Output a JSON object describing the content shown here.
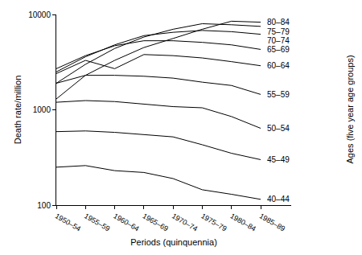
{
  "chart_data": {
    "type": "line",
    "xlabel": "Periods (quinquennia)",
    "ylabel": "Death rate/million",
    "annotations": [
      "Ages (five year age groups)"
    ],
    "log": "y",
    "ylim": [
      100,
      10000
    ],
    "yticks": [
      100,
      1000,
      10000
    ],
    "x": [
      "1950–54",
      "1955–59",
      "1960–64",
      "1965–69",
      "1970–74",
      "1975–79",
      "1980–84",
      "1985–89"
    ],
    "series": [
      {
        "name": "80–84",
        "color": "#000000",
        "values": [
          1300,
          2300,
          3300,
          4500,
          5600,
          7000,
          8500,
          8300
        ]
      },
      {
        "name": "75–79",
        "color": "#000000",
        "values": [
          1900,
          3000,
          4400,
          5800,
          7000,
          8000,
          7800,
          7500
        ]
      },
      {
        "name": "70–74",
        "color": "#000000",
        "values": [
          2500,
          3600,
          4800,
          6000,
          6500,
          6800,
          6600,
          6200
        ]
      },
      {
        "name": "65–69",
        "color": "#000000",
        "values": [
          2700,
          3700,
          4700,
          5300,
          5300,
          5100,
          4800,
          4300
        ]
      },
      {
        "name": "60–64",
        "color": "#000000",
        "values": [
          2400,
          3300,
          2700,
          3800,
          3700,
          3500,
          3200,
          2900
        ]
      },
      {
        "name": "55–59",
        "color": "#000000",
        "values": [
          1900,
          2300,
          2300,
          2250,
          2150,
          1950,
          1800,
          1450
        ]
      },
      {
        "name": "50–54",
        "color": "#000000",
        "values": [
          1200,
          1250,
          1220,
          1150,
          1080,
          1050,
          850,
          640
        ]
      },
      {
        "name": "45–49",
        "color": "#000000",
        "values": [
          590,
          600,
          580,
          550,
          520,
          430,
          350,
          300
        ]
      },
      {
        "name": "40–44",
        "color": "#000000",
        "values": [
          250,
          260,
          230,
          220,
          190,
          145,
          130,
          115
        ]
      }
    ]
  }
}
